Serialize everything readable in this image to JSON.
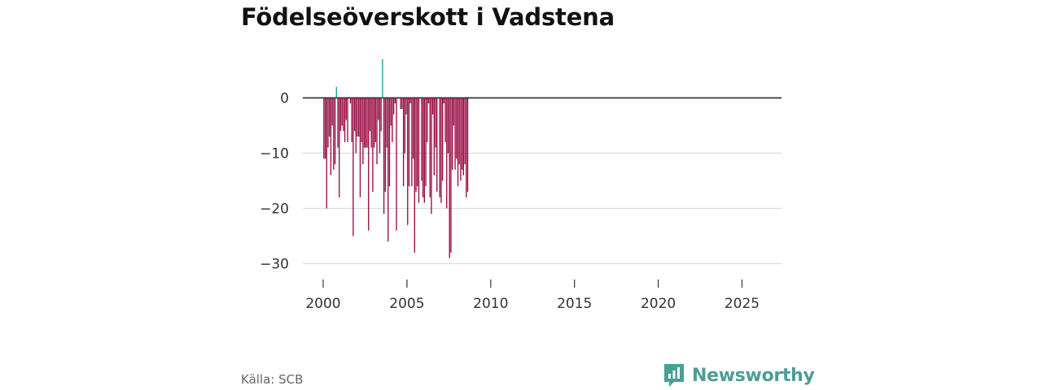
{
  "header": {
    "title": "Födelseöverskott i Vadstena"
  },
  "footer": {
    "source": "Källa: SCB",
    "brand": "Newsworthy"
  },
  "colors": {
    "negative": "#960b42",
    "positive": "#1a9f99",
    "zero_line": "#333333",
    "grid": "#dcdcdc",
    "brand": "#4a9e97"
  },
  "icons": [
    "newsworthy-logo-icon"
  ],
  "chart_data": {
    "type": "bar",
    "title": "Födelseöverskott i Vadstena",
    "xlabel": "",
    "ylabel": "",
    "x_frequency": "monthly",
    "x_start": "2000-01",
    "x_ticks": [
      "2000",
      "2005",
      "2010",
      "2015",
      "2020",
      "2025"
    ],
    "ylim": [
      -33,
      7
    ],
    "y_ticks": [
      0,
      -10,
      -20,
      -30
    ],
    "y_tick_labels": [
      "0",
      "−10",
      "−20",
      "−30"
    ],
    "grid": true,
    "legend": "none",
    "values": [
      -11,
      -11,
      -20,
      -9,
      -7,
      -14,
      -5,
      -13,
      -12,
      2,
      -9,
      -18,
      -6,
      -5,
      -6,
      -8,
      -4,
      -8,
      0,
      -1,
      -8,
      -25,
      -6,
      -10,
      -7,
      -7,
      -18,
      -8,
      -12,
      -9,
      -9,
      -9,
      -24,
      -6,
      -9,
      -17,
      -9,
      -8,
      -12,
      -4,
      -10,
      -6,
      7,
      -21,
      -17,
      -9,
      -26,
      -16,
      -5,
      -8,
      -3,
      -1,
      -24,
      0,
      0,
      -2,
      -2,
      -16,
      -10,
      -3,
      -23,
      -16,
      -1,
      -16,
      -11,
      -28,
      -17,
      -16,
      -19,
      0,
      -15,
      -18,
      -19,
      -16,
      -8,
      -1,
      -18,
      -21,
      -3,
      -14,
      -9,
      -17,
      0,
      -18,
      -19,
      -15,
      -1,
      -8,
      -20,
      -10,
      -29,
      -28,
      -13,
      -5,
      -13,
      -11,
      -16,
      -12,
      -15,
      -13,
      -14,
      -12,
      -18,
      -17
    ]
  }
}
